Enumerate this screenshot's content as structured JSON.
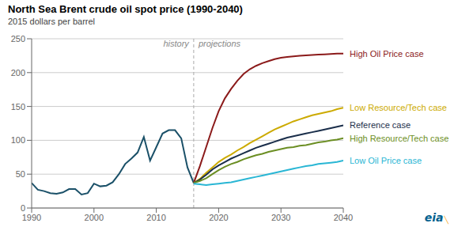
{
  "chart_data": {
    "type": "line",
    "title": "North Sea Brent crude oil spot price (1990-2040)",
    "subtitle": "2015 dollars per barrel",
    "xlim": [
      1990,
      2040
    ],
    "xticks": [
      1990,
      2000,
      2010,
      2020,
      2030,
      2040
    ],
    "ylim": [
      0,
      250
    ],
    "yticks": [
      0,
      50,
      100,
      150,
      200,
      250
    ],
    "grid": true,
    "divider_x": 2016,
    "annotations": [
      {
        "text": "history",
        "x": 2016,
        "y": 243,
        "color": "#888888"
      },
      {
        "text": "projections",
        "x": 2016,
        "y": 243,
        "color": "#888888"
      },
      {
        "text": "eia",
        "color": "#005f8e"
      },
      {
        "text": "╲",
        "color": "#f5a623"
      }
    ],
    "series": [
      {
        "color": "#1a5068",
        "x": [
          1990,
          1991,
          1992,
          1993,
          1994,
          1995,
          1996,
          1997,
          1998,
          1999,
          2000,
          2001,
          2002,
          2003,
          2004,
          2005,
          2006,
          2007,
          2008,
          2009,
          2010,
          2011,
          2012,
          2013,
          2014,
          2015,
          2016
        ],
        "values": [
          37,
          27,
          25,
          22,
          21,
          23,
          28,
          28,
          20,
          22,
          36,
          32,
          33,
          38,
          50,
          65,
          73,
          82,
          105,
          70,
          90,
          110,
          115,
          115,
          103,
          60,
          37
        ]
      },
      {
        "name": "High Oil Price case",
        "color": "#8b1a1a",
        "x": [
          2016,
          2017,
          2018,
          2019,
          2020,
          2021,
          2022,
          2023,
          2024,
          2025,
          2026,
          2027,
          2028,
          2029,
          2030,
          2031,
          2032,
          2033,
          2034,
          2035,
          2036,
          2037,
          2038,
          2039,
          2040
        ],
        "values": [
          37,
          62,
          90,
          118,
          143,
          162,
          176,
          188,
          198,
          205,
          210,
          214,
          217,
          220,
          222,
          223,
          224,
          225,
          225.5,
          226,
          226.5,
          227,
          227.5,
          228,
          228
        ]
      },
      {
        "name": "Low Resource/Tech case",
        "color": "#ccaa00",
        "x": [
          2016,
          2017,
          2018,
          2019,
          2020,
          2021,
          2022,
          2023,
          2024,
          2025,
          2026,
          2027,
          2028,
          2029,
          2030,
          2031,
          2032,
          2033,
          2034,
          2035,
          2036,
          2037,
          2038,
          2039,
          2040
        ],
        "values": [
          37,
          43,
          52,
          60,
          68,
          74,
          79,
          85,
          90,
          96,
          101,
          106,
          111,
          116,
          120,
          124,
          128,
          131,
          134,
          137,
          139,
          141,
          143,
          146,
          148
        ]
      },
      {
        "name": "Reference case",
        "color": "#1a2e4a",
        "x": [
          2016,
          2017,
          2018,
          2019,
          2020,
          2021,
          2022,
          2023,
          2024,
          2025,
          2026,
          2027,
          2028,
          2029,
          2030,
          2031,
          2032,
          2033,
          2034,
          2035,
          2036,
          2037,
          2038,
          2039,
          2040
        ],
        "values": [
          37,
          42,
          49,
          57,
          63,
          68,
          73,
          77,
          81,
          85,
          89,
          92,
          95,
          98,
          101,
          104,
          106,
          108,
          110,
          112,
          114,
          116,
          118,
          120,
          122
        ]
      },
      {
        "name": "High Resource/Tech case",
        "color": "#6b8e23",
        "x": [
          2016,
          2017,
          2018,
          2019,
          2020,
          2021,
          2022,
          2023,
          2024,
          2025,
          2026,
          2027,
          2028,
          2029,
          2030,
          2031,
          2032,
          2033,
          2034,
          2035,
          2036,
          2037,
          2038,
          2039,
          2040
        ],
        "values": [
          37,
          40,
          44,
          50,
          56,
          61,
          65,
          68,
          72,
          75,
          78,
          80,
          83,
          85,
          87,
          89,
          90,
          92,
          93,
          95,
          97,
          98,
          100,
          101,
          103
        ]
      },
      {
        "name": "Low Oil Price case",
        "color": "#29b6d4",
        "x": [
          2016,
          2017,
          2018,
          2019,
          2020,
          2021,
          2022,
          2023,
          2024,
          2025,
          2026,
          2027,
          2028,
          2029,
          2030,
          2031,
          2032,
          2033,
          2034,
          2035,
          2036,
          2037,
          2038,
          2039,
          2040
        ],
        "values": [
          36,
          35,
          34,
          35,
          36,
          37,
          38,
          40,
          42,
          44,
          46,
          48,
          50,
          52,
          54,
          56,
          58,
          60,
          62,
          63,
          65,
          66,
          67,
          68,
          70
        ]
      }
    ]
  }
}
